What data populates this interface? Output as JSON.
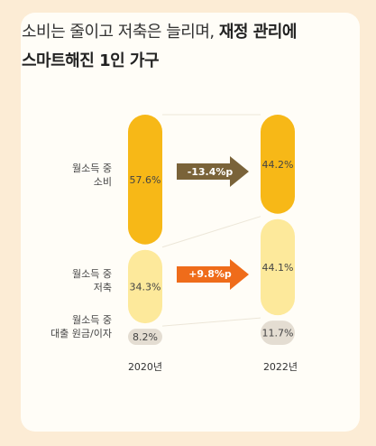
{
  "title": {
    "line1_normal": "소비는 줄이고 저축은 늘리며, ",
    "line1_bold": "재정 관리에",
    "line2_bold": "스마트해진 1인 가구"
  },
  "rows": [
    {
      "line1": "월소득 중",
      "line2": "소비"
    },
    {
      "line1": "월소득 중",
      "line2": "저축"
    },
    {
      "line1": "월소득 중",
      "line2": "대출 원금/이자"
    }
  ],
  "changes": [
    {
      "label": "-13.4%p",
      "color": "#7a6339"
    },
    {
      "label": "+9.8%p",
      "color": "#ef6c1a"
    }
  ],
  "chart_data": {
    "type": "bar",
    "stacked": true,
    "categories": [
      "2020년",
      "2022년"
    ],
    "series": [
      {
        "name": "월소득 중 소비",
        "values": [
          57.6,
          44.2
        ],
        "labels": [
          "57.6%",
          "44.2%"
        ],
        "color": "#f7b817"
      },
      {
        "name": "월소득 중 저축",
        "values": [
          34.3,
          44.1
        ],
        "labels": [
          "34.3%",
          "44.1%"
        ],
        "color": "#fde99b"
      },
      {
        "name": "월소득 중 대출 원금/이자",
        "values": [
          8.2,
          11.7
        ],
        "labels": [
          "8.2%",
          "11.7%"
        ],
        "color": "#e4ddd2"
      }
    ]
  }
}
